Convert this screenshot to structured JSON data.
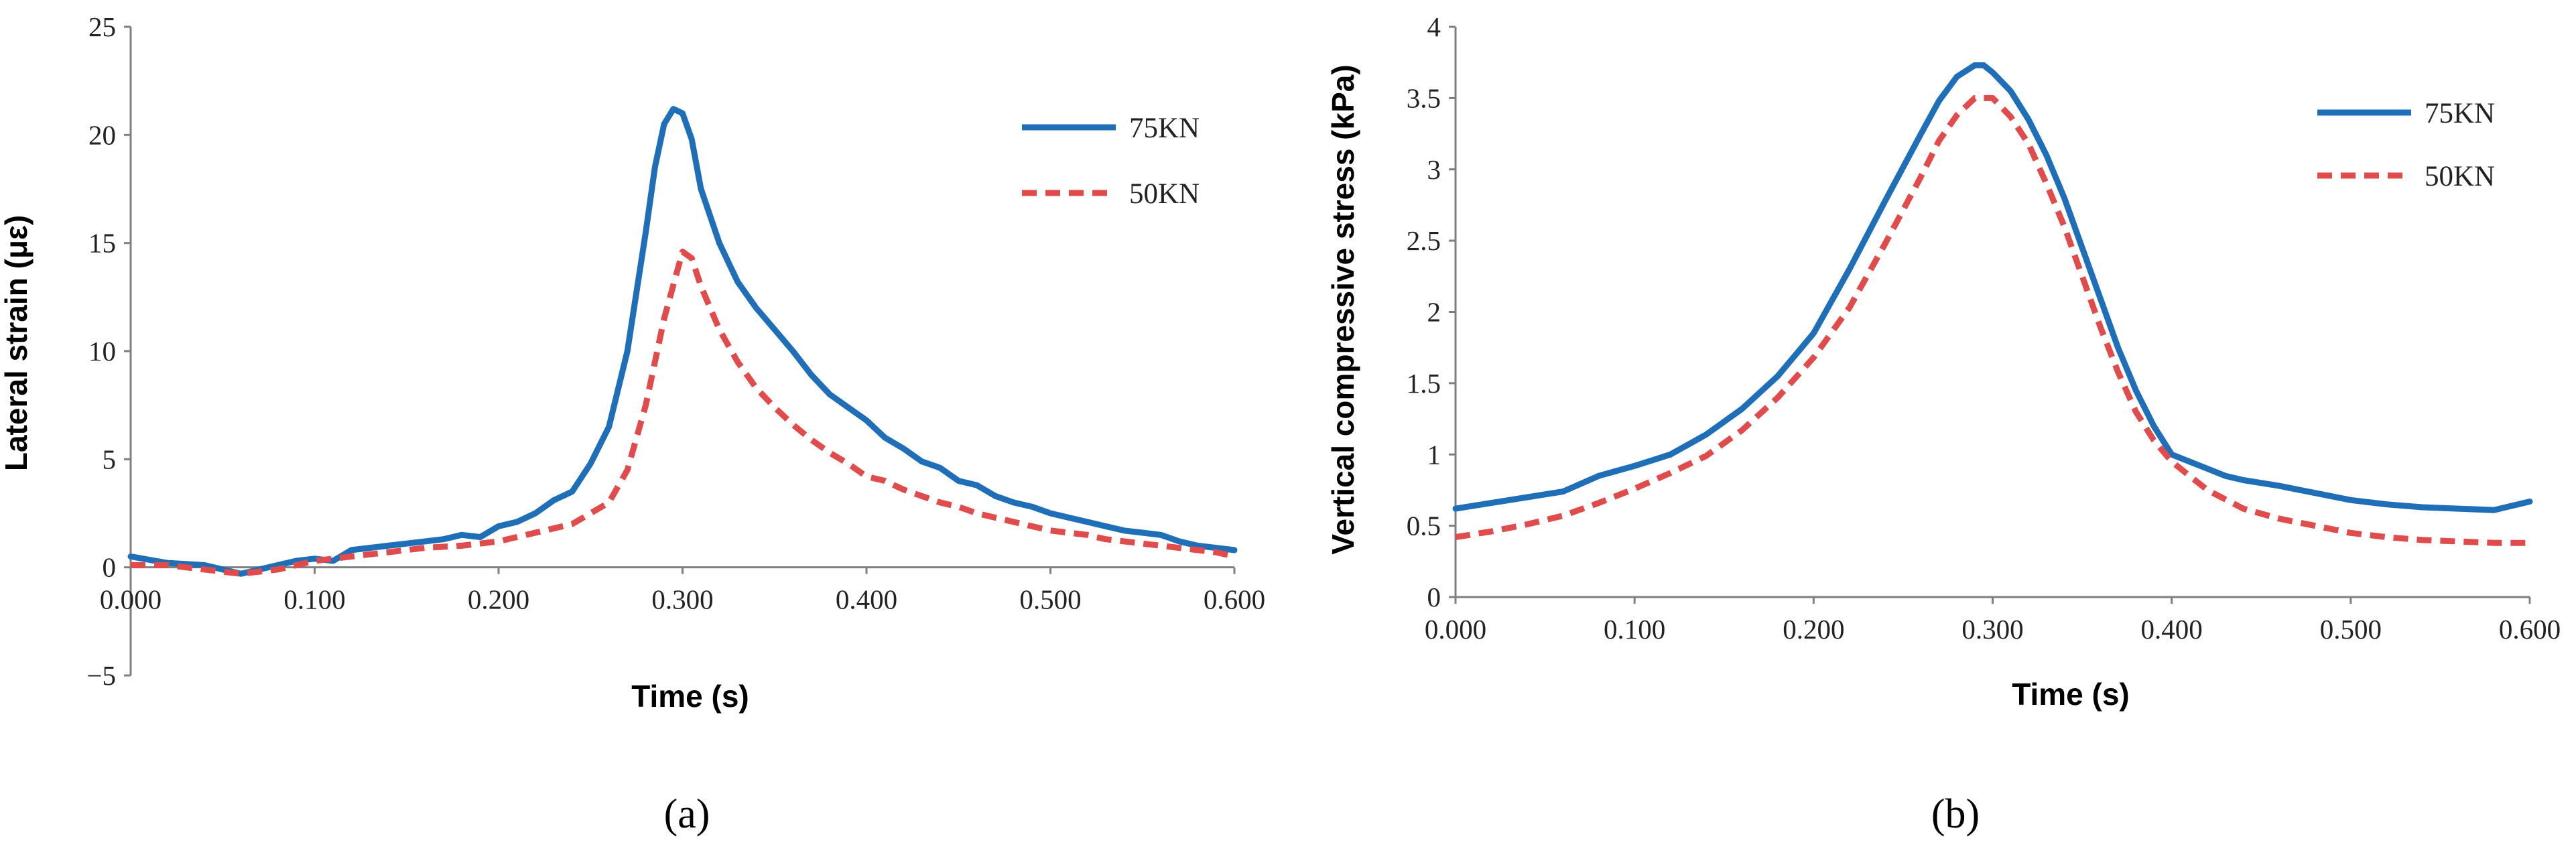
{
  "chart_data": [
    {
      "panel_label": "(a)",
      "type": "line",
      "title": "",
      "xlabel": "Time (s)",
      "ylabel": "Lateral strain (με)",
      "xlim": [
        0,
        0.6
      ],
      "ylim": [
        -5,
        25
      ],
      "x_ticks": [
        "0.000",
        "0.100",
        "0.200",
        "0.300",
        "0.400",
        "0.500",
        "0.600"
      ],
      "y_ticks": [
        "−5",
        "0",
        "5",
        "10",
        "15",
        "20",
        "25"
      ],
      "legend_position": "top-right",
      "series": [
        {
          "name": "75KN",
          "color": "#1f6fb8",
          "dash": "solid",
          "x": [
            0,
            0.02,
            0.04,
            0.05,
            0.06,
            0.08,
            0.09,
            0.1,
            0.11,
            0.12,
            0.14,
            0.15,
            0.17,
            0.18,
            0.19,
            0.2,
            0.21,
            0.22,
            0.23,
            0.24,
            0.25,
            0.26,
            0.27,
            0.28,
            0.285,
            0.29,
            0.295,
            0.3,
            0.305,
            0.31,
            0.32,
            0.33,
            0.34,
            0.35,
            0.36,
            0.37,
            0.38,
            0.39,
            0.4,
            0.41,
            0.42,
            0.43,
            0.44,
            0.45,
            0.46,
            0.47,
            0.48,
            0.49,
            0.5,
            0.51,
            0.52,
            0.53,
            0.54,
            0.55,
            0.56,
            0.57,
            0.58,
            0.59,
            0.6
          ],
          "values": [
            0.5,
            0.2,
            0.1,
            -0.1,
            -0.3,
            0.1,
            0.3,
            0.4,
            0.3,
            0.8,
            1.0,
            1.1,
            1.3,
            1.5,
            1.4,
            1.9,
            2.1,
            2.5,
            3.1,
            3.5,
            4.8,
            6.5,
            10.0,
            15.5,
            18.5,
            20.5,
            21.2,
            21.0,
            19.8,
            17.5,
            15.0,
            13.2,
            12.0,
            11.0,
            10.0,
            8.9,
            8.0,
            7.4,
            6.8,
            6.0,
            5.5,
            4.9,
            4.6,
            4.0,
            3.8,
            3.3,
            3.0,
            2.8,
            2.5,
            2.3,
            2.1,
            1.9,
            1.7,
            1.6,
            1.5,
            1.2,
            1.0,
            0.9,
            0.8
          ]
        },
        {
          "name": "50KN",
          "color": "#e04b4b",
          "dash": "dashed",
          "x": [
            0,
            0.02,
            0.04,
            0.06,
            0.08,
            0.1,
            0.12,
            0.14,
            0.16,
            0.18,
            0.2,
            0.22,
            0.24,
            0.26,
            0.27,
            0.28,
            0.29,
            0.3,
            0.305,
            0.31,
            0.32,
            0.33,
            0.34,
            0.35,
            0.36,
            0.37,
            0.38,
            0.39,
            0.4,
            0.41,
            0.42,
            0.43,
            0.44,
            0.45,
            0.46,
            0.47,
            0.48,
            0.49,
            0.5,
            0.51,
            0.52,
            0.53,
            0.54,
            0.55,
            0.56,
            0.57,
            0.58,
            0.59,
            0.6
          ],
          "values": [
            0.1,
            0.1,
            -0.1,
            -0.3,
            -0.1,
            0.3,
            0.5,
            0.7,
            0.9,
            1.0,
            1.2,
            1.6,
            2.0,
            3.0,
            4.5,
            7.5,
            11.5,
            14.6,
            14.3,
            13.0,
            11.0,
            9.5,
            8.3,
            7.4,
            6.6,
            5.9,
            5.3,
            4.8,
            4.2,
            4.0,
            3.6,
            3.3,
            3.0,
            2.8,
            2.5,
            2.3,
            2.1,
            1.9,
            1.7,
            1.6,
            1.5,
            1.3,
            1.2,
            1.1,
            1.0,
            0.9,
            0.8,
            0.7,
            0.5
          ]
        }
      ]
    },
    {
      "panel_label": "(b)",
      "type": "line",
      "title": "",
      "xlabel": "Time (s)",
      "ylabel": "Vertical compressive  stress  (kPa)",
      "xlim": [
        0,
        0.6
      ],
      "ylim": [
        0,
        4
      ],
      "x_ticks": [
        "0.000",
        "0.100",
        "0.200",
        "0.300",
        "0.400",
        "0.500",
        "0.600"
      ],
      "y_ticks": [
        "0",
        "0.5",
        "1",
        "1.5",
        "2",
        "2.5",
        "3",
        "3.5",
        "4"
      ],
      "legend_position": "top-right",
      "series": [
        {
          "name": "75KN",
          "color": "#1f6fb8",
          "dash": "solid",
          "x": [
            0,
            0.02,
            0.04,
            0.06,
            0.08,
            0.1,
            0.12,
            0.14,
            0.16,
            0.18,
            0.2,
            0.22,
            0.24,
            0.26,
            0.27,
            0.28,
            0.29,
            0.295,
            0.3,
            0.31,
            0.32,
            0.33,
            0.34,
            0.35,
            0.36,
            0.37,
            0.38,
            0.39,
            0.4,
            0.41,
            0.42,
            0.43,
            0.44,
            0.46,
            0.48,
            0.5,
            0.52,
            0.54,
            0.56,
            0.58,
            0.6
          ],
          "values": [
            0.62,
            0.66,
            0.7,
            0.74,
            0.85,
            0.92,
            1.0,
            1.14,
            1.32,
            1.55,
            1.85,
            2.3,
            2.78,
            3.25,
            3.48,
            3.65,
            3.73,
            3.73,
            3.68,
            3.55,
            3.35,
            3.1,
            2.8,
            2.45,
            2.1,
            1.75,
            1.45,
            1.2,
            1.0,
            0.95,
            0.9,
            0.85,
            0.82,
            0.78,
            0.73,
            0.68,
            0.65,
            0.63,
            0.62,
            0.61,
            0.67
          ]
        },
        {
          "name": "50KN",
          "color": "#e04b4b",
          "dash": "dashed",
          "x": [
            0,
            0.02,
            0.04,
            0.06,
            0.08,
            0.1,
            0.12,
            0.14,
            0.16,
            0.18,
            0.2,
            0.22,
            0.24,
            0.26,
            0.27,
            0.28,
            0.29,
            0.3,
            0.31,
            0.32,
            0.33,
            0.34,
            0.35,
            0.36,
            0.37,
            0.38,
            0.39,
            0.4,
            0.41,
            0.42,
            0.44,
            0.46,
            0.48,
            0.5,
            0.52,
            0.54,
            0.56,
            0.58,
            0.6
          ],
          "values": [
            0.42,
            0.46,
            0.51,
            0.57,
            0.66,
            0.76,
            0.87,
            0.99,
            1.17,
            1.4,
            1.68,
            2.03,
            2.48,
            2.95,
            3.2,
            3.38,
            3.5,
            3.5,
            3.37,
            3.18,
            2.9,
            2.6,
            2.25,
            1.9,
            1.58,
            1.3,
            1.1,
            0.95,
            0.85,
            0.75,
            0.62,
            0.55,
            0.5,
            0.45,
            0.42,
            0.4,
            0.39,
            0.38,
            0.38
          ]
        }
      ]
    }
  ]
}
